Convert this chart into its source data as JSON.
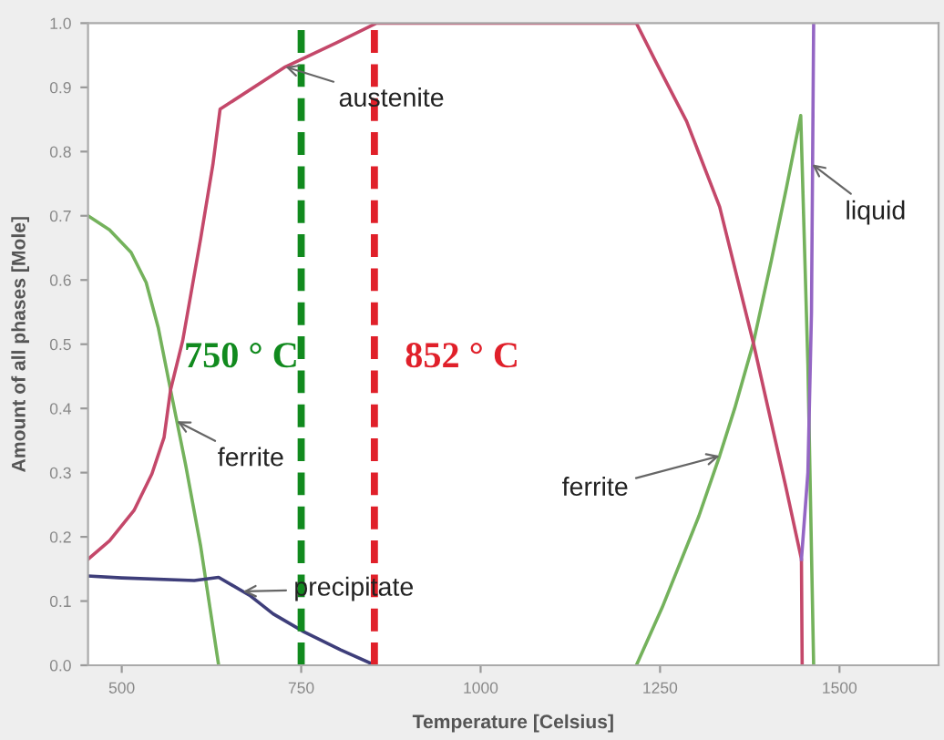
{
  "chart_data": {
    "type": "line",
    "xlabel": "Temperature [Celsius]",
    "ylabel": "Amount of all phases [Mole]",
    "xlim": [
      453,
      1638
    ],
    "xticks": [
      500,
      750,
      1000,
      1250,
      1500
    ],
    "ylim": [
      0,
      1
    ],
    "yticks": [
      {
        "value": 0,
        "label": "0.0"
      },
      0.1,
      0.2,
      0.3,
      0.4,
      0.5,
      0.6,
      0.7,
      0.8,
      0.9,
      {
        "value": 1,
        "label": "1.0"
      }
    ],
    "series": [
      {
        "color": "#74b25c",
        "x": [
          453,
          483,
          513,
          534,
          551,
          568,
          589,
          610,
          635,
          900,
          1217,
          1253,
          1304,
          1333,
          1354,
          1380,
          1405,
          1426,
          1446,
          1456,
          1464
        ],
        "values": [
          0.7,
          0.678,
          0.643,
          0.596,
          0.525,
          0.429,
          0.312,
          0.185,
          0.0,
          null,
          0.0,
          0.09,
          0.232,
          0.326,
          0.4,
          0.502,
          0.63,
          0.743,
          0.856,
          0.468,
          0.0
        ]
      },
      {
        "color": "#c4486a",
        "x": [
          453,
          483,
          517,
          542,
          559,
          568,
          585,
          610,
          627,
          637,
          728,
          800,
          855,
          1217,
          1244,
          1287,
          1333,
          1380,
          1425,
          1447,
          1448
        ],
        "values": [
          0.165,
          0.194,
          0.241,
          0.298,
          0.355,
          0.429,
          0.506,
          0.665,
          0.78,
          0.866,
          0.932,
          0.97,
          1.0,
          1.0,
          0.94,
          0.847,
          0.714,
          0.502,
          0.279,
          0.165,
          0.0
        ]
      },
      {
        "color": "#3e3e7a",
        "x": [
          453,
          500,
          601,
          635,
          678,
          711,
          754,
          805,
          853
        ],
        "values": [
          0.139,
          0.136,
          0.132,
          0.137,
          0.109,
          0.08,
          0.052,
          0.024,
          0.0
        ]
      },
      {
        "color": "#9466c4",
        "x": [
          1447,
          1456,
          1461,
          1464
        ],
        "values": [
          0.165,
          0.3,
          0.55,
          1.0
        ]
      }
    ],
    "ref_lines": [
      {
        "axis": "x",
        "value": 750,
        "label": "750 ° C",
        "color": "#118a1e",
        "line_style": "dashed"
      },
      {
        "axis": "x",
        "value": 852,
        "label": "852 ° C",
        "color": "#e0202a",
        "line_style": "dashed"
      }
    ],
    "annotations": [
      {
        "text": "austenite",
        "x": 728,
        "y": 0.932
      },
      {
        "text": "ferrite",
        "x": 577,
        "y": 0.38
      },
      {
        "text": "precipitate",
        "x": 669,
        "y": 0.115
      },
      {
        "text": "ferrite",
        "x": 1333,
        "y": 0.326
      },
      {
        "text": "liquid",
        "x": 1462,
        "y": 0.78
      }
    ]
  }
}
